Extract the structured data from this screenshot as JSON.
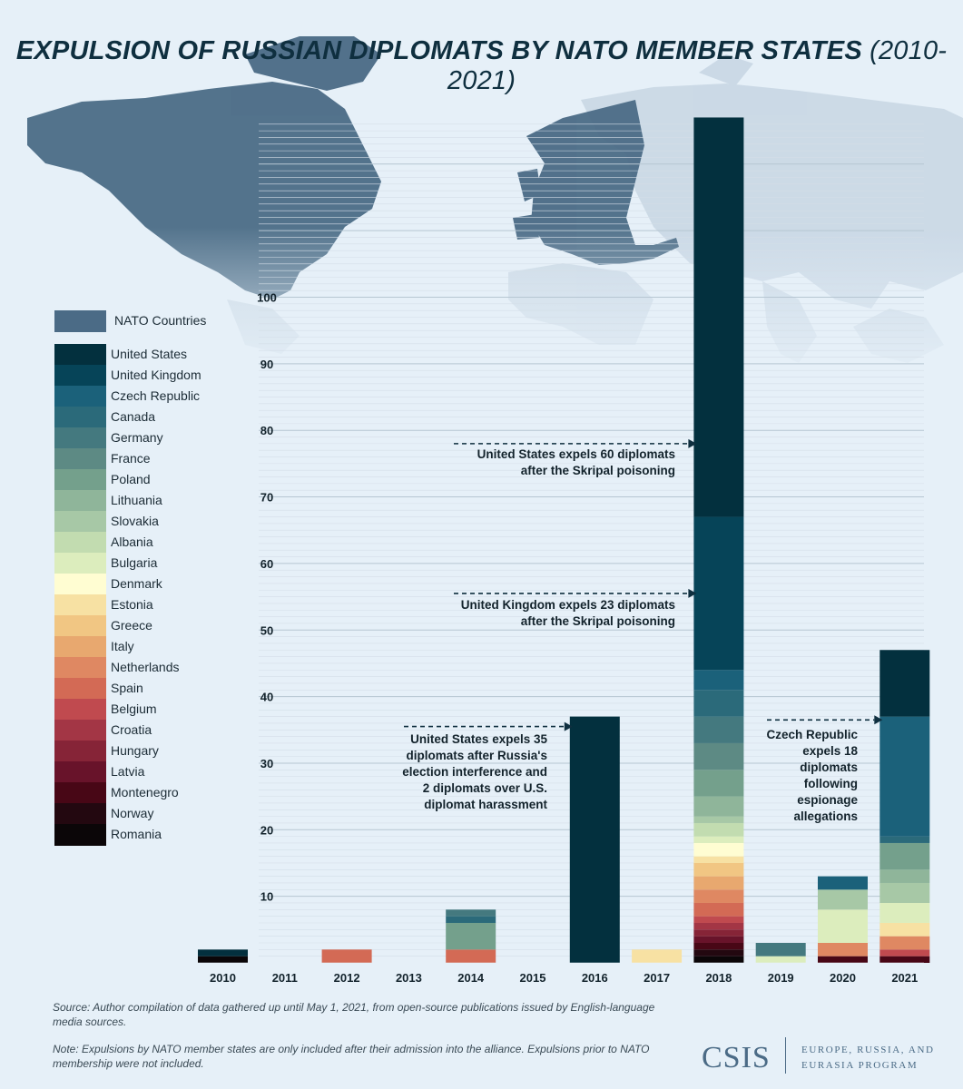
{
  "title": {
    "main": "EXPULSION OF RUSSIAN DIPLOMATS BY NATO MEMBER STATES",
    "sub": "(2010-2021)"
  },
  "map_legend": {
    "label": "NATO Countries",
    "color": "#4b6b86"
  },
  "legend": [
    {
      "name": "United States",
      "color": "#03303e"
    },
    {
      "name": "United Kingdom",
      "color": "#064458"
    },
    {
      "name": "Czech Republic",
      "color": "#1b617a"
    },
    {
      "name": "Canada",
      "color": "#2b6a7a"
    },
    {
      "name": "Germany",
      "color": "#44797f"
    },
    {
      "name": "France",
      "color": "#5d8a84"
    },
    {
      "name": "Poland",
      "color": "#74a08c"
    },
    {
      "name": "Lithuania",
      "color": "#8fb59a"
    },
    {
      "name": "Slovakia",
      "color": "#a7c8a6"
    },
    {
      "name": "Albania",
      "color": "#c2dcb0"
    },
    {
      "name": "Bulgaria",
      "color": "#dcedbd"
    },
    {
      "name": "Denmark",
      "color": "#fffdd2"
    },
    {
      "name": "Estonia",
      "color": "#f7e1a3"
    },
    {
      "name": "Greece",
      "color": "#f1c683"
    },
    {
      "name": "Italy",
      "color": "#e8a86f"
    },
    {
      "name": "Netherlands",
      "color": "#df8862"
    },
    {
      "name": "Spain",
      "color": "#d36a55"
    },
    {
      "name": "Belgium",
      "color": "#c04a4f"
    },
    {
      "name": "Croatia",
      "color": "#a33645"
    },
    {
      "name": "Hungary",
      "color": "#862437"
    },
    {
      "name": "Latvia",
      "color": "#68132a"
    },
    {
      "name": "Montenegro",
      "color": "#480716"
    },
    {
      "name": "Norway",
      "color": "#230810"
    },
    {
      "name": "Romania",
      "color": "#0b0608"
    }
  ],
  "chart_data": {
    "type": "bar",
    "stacked": true,
    "title": "EXPULSION OF RUSSIAN DIPLOMATS BY NATO MEMBER STATES (2010-2021)",
    "xlabel": "",
    "ylabel": "",
    "ylim": [
      0,
      126
    ],
    "yticks": [
      10,
      20,
      30,
      40,
      50,
      60,
      70,
      80,
      90,
      100
    ],
    "categories": [
      "2010",
      "2011",
      "2012",
      "2013",
      "2014",
      "2015",
      "2016",
      "2017",
      "2018",
      "2019",
      "2020",
      "2021"
    ],
    "stacks": [
      [
        {
          "country": "Romania",
          "value": 1
        },
        {
          "country": "United States",
          "value": 1
        }
      ],
      [],
      [
        {
          "country": "Spain",
          "value": 2
        }
      ],
      [],
      [
        {
          "country": "Spain",
          "value": 2
        },
        {
          "country": "Poland",
          "value": 4
        },
        {
          "country": "Canada",
          "value": 1
        },
        {
          "country": "Germany",
          "value": 1
        }
      ],
      [],
      [
        {
          "country": "United States",
          "value": 37
        }
      ],
      [
        {
          "country": "Estonia",
          "value": 2
        }
      ],
      [
        {
          "country": "Romania",
          "value": 1
        },
        {
          "country": "Norway",
          "value": 1
        },
        {
          "country": "Montenegro",
          "value": 1
        },
        {
          "country": "Latvia",
          "value": 1
        },
        {
          "country": "Hungary",
          "value": 1
        },
        {
          "country": "Croatia",
          "value": 1
        },
        {
          "country": "Belgium",
          "value": 1
        },
        {
          "country": "Spain",
          "value": 2
        },
        {
          "country": "Netherlands",
          "value": 2
        },
        {
          "country": "Italy",
          "value": 2
        },
        {
          "country": "Greece",
          "value": 2
        },
        {
          "country": "Estonia",
          "value": 1
        },
        {
          "country": "Denmark",
          "value": 2
        },
        {
          "country": "Bulgaria",
          "value": 1
        },
        {
          "country": "Albania",
          "value": 2
        },
        {
          "country": "Slovakia",
          "value": 1
        },
        {
          "country": "Lithuania",
          "value": 3
        },
        {
          "country": "Poland",
          "value": 4
        },
        {
          "country": "France",
          "value": 4
        },
        {
          "country": "Germany",
          "value": 4
        },
        {
          "country": "Canada",
          "value": 4
        },
        {
          "country": "Czech Republic",
          "value": 3
        },
        {
          "country": "United Kingdom",
          "value": 23
        },
        {
          "country": "United States",
          "value": 60
        }
      ],
      [
        {
          "country": "Bulgaria",
          "value": 1
        },
        {
          "country": "Germany",
          "value": 2
        }
      ],
      [
        {
          "country": "Montenegro",
          "value": 1
        },
        {
          "country": "Netherlands",
          "value": 2
        },
        {
          "country": "Bulgaria",
          "value": 5
        },
        {
          "country": "Slovakia",
          "value": 3
        },
        {
          "country": "Czech Republic",
          "value": 2
        }
      ],
      [
        {
          "country": "Montenegro",
          "value": 1
        },
        {
          "country": "Belgium",
          "value": 1
        },
        {
          "country": "Netherlands",
          "value": 2
        },
        {
          "country": "Estonia",
          "value": 2
        },
        {
          "country": "Bulgaria",
          "value": 3
        },
        {
          "country": "Slovakia",
          "value": 3
        },
        {
          "country": "Lithuania",
          "value": 2
        },
        {
          "country": "Poland",
          "value": 4
        },
        {
          "country": "Canada",
          "value": 1
        },
        {
          "country": "Czech Republic",
          "value": 18
        },
        {
          "country": "United States",
          "value": 10
        }
      ]
    ],
    "annotations": [
      {
        "text": "United States expels 60 diplomats after the Skripal poisoning",
        "line1": "United States expels 60 diplomats",
        "line2": "after the Skripal poisoning",
        "target_year": "2018",
        "at_value": 78
      },
      {
        "text": "United Kingdom expels 23 diplomats after the Skripal poisoning",
        "line1": "United Kingdom expels 23 diplomats",
        "line2": "after the Skripal poisoning",
        "target_year": "2018",
        "at_value": 55.5
      },
      {
        "text": "United States expels 35 diplomats after Russia's election interference and 2 diplomats over U.S. diplomat harassment",
        "lines": [
          "United States expels 35",
          "diplomats after Russia's",
          "election interference and",
          "2 diplomats over U.S.",
          "diplomat harassment"
        ],
        "target_year": "2016",
        "at_value": 35.5
      },
      {
        "text": "Czech Republic expels 18 diplomats following espionage allegations",
        "lines": [
          "Czech Republic",
          "expels 18",
          "diplomats",
          "following",
          "espionage",
          "allegations"
        ],
        "target_year": "2021",
        "at_value": 36.5
      }
    ]
  },
  "footer": {
    "source": "Source: Author compilation of data gathered up until May 1, 2021, from open-source publications issued by English-language media sources.",
    "note": "Note: Expulsions by NATO member states are only included after their admission into the alliance. Expulsions prior to NATO membership were not included."
  },
  "brand": {
    "logo": "CSIS",
    "program": "EUROPE, RUSSIA, AND EURASIA PROGRAM"
  }
}
